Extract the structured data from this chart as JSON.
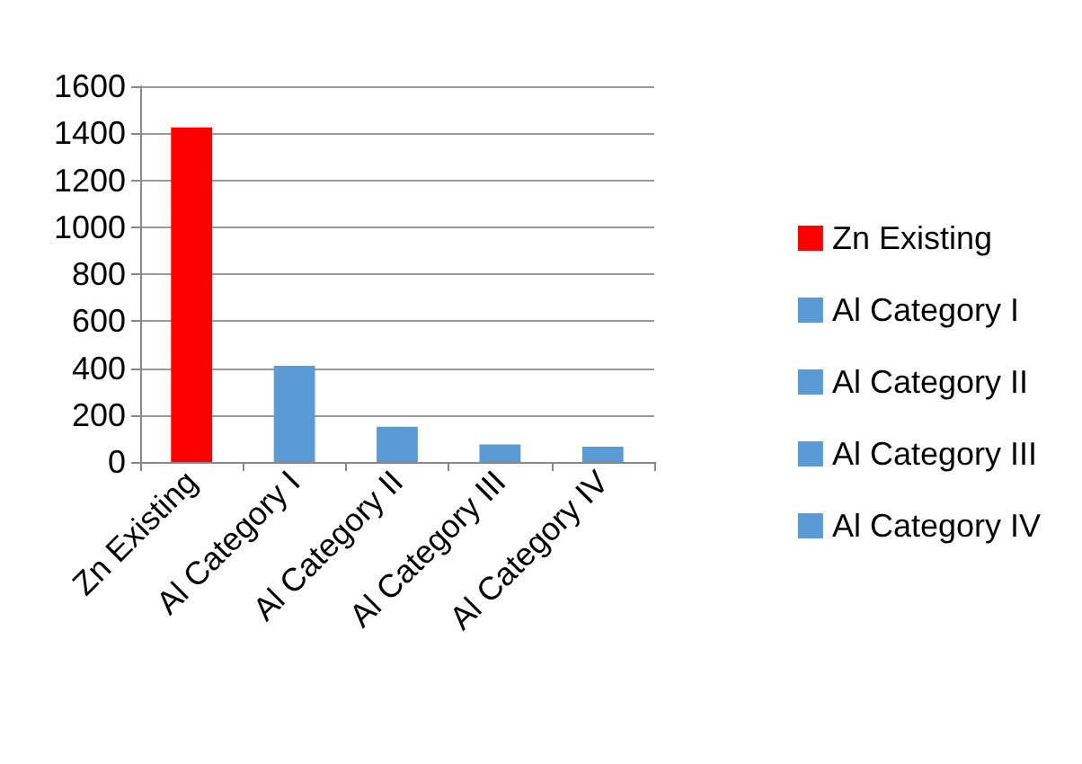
{
  "chart_data": {
    "type": "bar",
    "categories": [
      "Zn Existing",
      "Al Category I",
      "Al Category II",
      "Al Category III",
      "Al Category IV"
    ],
    "series": [
      {
        "name": "Zn Existing",
        "color": "#ff0000",
        "values": [
          1425,
          null,
          null,
          null,
          null
        ]
      },
      {
        "name": "Al Category I",
        "color": "#5b9bd5",
        "values": [
          null,
          410,
          null,
          null,
          null
        ]
      },
      {
        "name": "Al Category II",
        "color": "#5b9bd5",
        "values": [
          null,
          null,
          150,
          null,
          null
        ]
      },
      {
        "name": "Al Category III",
        "color": "#5b9bd5",
        "values": [
          null,
          null,
          null,
          75,
          null
        ]
      },
      {
        "name": "Al Category IV",
        "color": "#5b9bd5",
        "values": [
          null,
          null,
          null,
          null,
          65
        ]
      }
    ],
    "stacked": true,
    "ylim": [
      0,
      1600
    ],
    "yticks": [
      0,
      200,
      400,
      600,
      800,
      1000,
      1200,
      1400,
      1600
    ],
    "grid": "y",
    "legend": "right"
  }
}
